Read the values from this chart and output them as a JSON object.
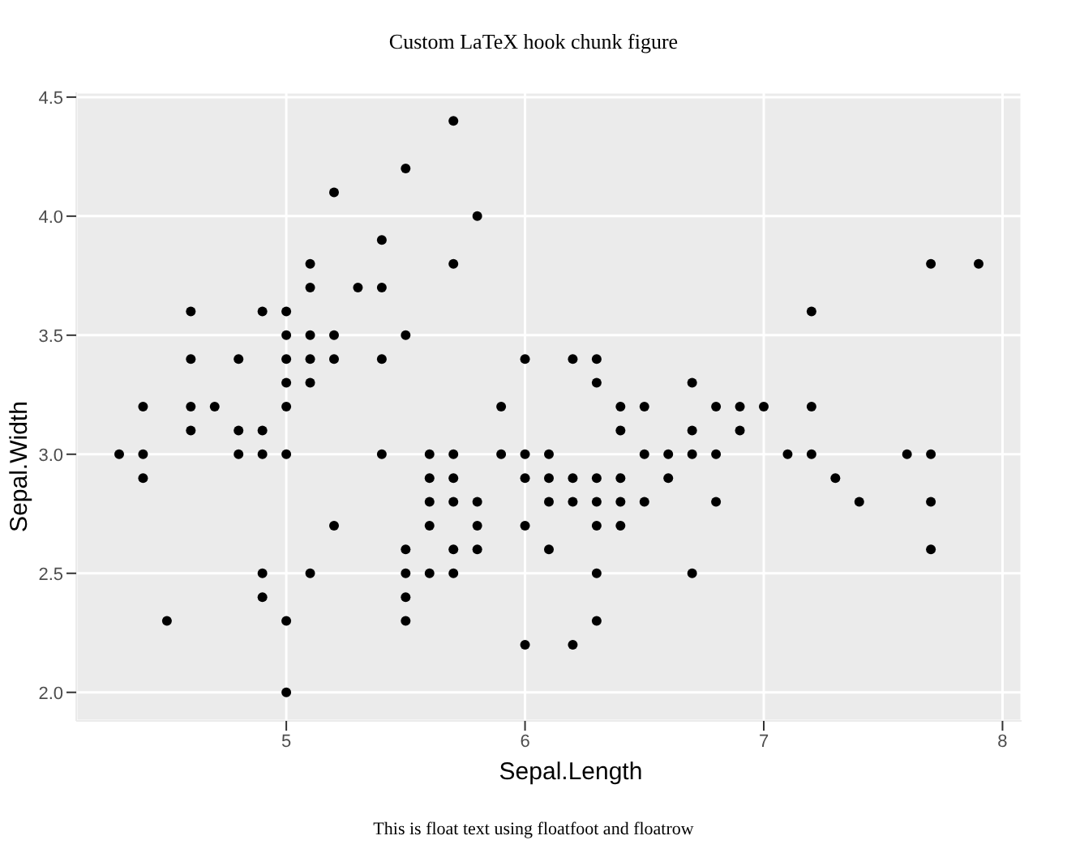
{
  "chart_data": {
    "type": "scatter",
    "title": "Custom LaTeX hook chunk figure",
    "xlabel": "Sepal.Length",
    "ylabel": "Sepal.Width",
    "annotations": [
      "This is float text using floatfoot and floatrow"
    ],
    "series": [
      {
        "color": "#000000",
        "x": [
          4.3,
          4.4,
          4.4,
          4.4,
          4.5,
          4.6,
          4.6,
          4.6,
          4.6,
          4.7,
          4.8,
          4.8,
          4.8,
          4.9,
          4.9,
          4.9,
          4.9,
          4.9,
          5.0,
          5.0,
          5.0,
          5.0,
          5.0,
          5.0,
          5.0,
          5.0,
          5.1,
          5.1,
          5.1,
          5.1,
          5.1,
          5.1,
          5.2,
          5.2,
          5.2,
          5.2,
          5.3,
          5.4,
          5.4,
          5.4,
          5.4,
          5.5,
          5.5,
          5.5,
          5.5,
          5.5,
          5.5,
          5.6,
          5.6,
          5.6,
          5.6,
          5.6,
          5.7,
          5.7,
          5.7,
          5.7,
          5.7,
          5.7,
          5.7,
          5.8,
          5.8,
          5.8,
          5.8,
          5.9,
          5.9,
          6.0,
          6.0,
          6.0,
          6.0,
          6.0,
          6.1,
          6.1,
          6.1,
          6.1,
          6.2,
          6.2,
          6.2,
          6.2,
          6.3,
          6.3,
          6.3,
          6.3,
          6.3,
          6.3,
          6.3,
          6.4,
          6.4,
          6.4,
          6.4,
          6.4,
          6.5,
          6.5,
          6.5,
          6.6,
          6.6,
          6.7,
          6.7,
          6.7,
          6.7,
          6.8,
          6.8,
          6.8,
          6.9,
          6.9,
          7.0,
          7.1,
          7.2,
          7.2,
          7.2,
          7.3,
          7.4,
          7.6,
          7.7,
          7.7,
          7.7,
          7.7,
          7.9
        ],
        "values": [
          3.0,
          2.9,
          3.0,
          3.2,
          2.3,
          3.1,
          3.4,
          3.6,
          3.2,
          3.2,
          3.4,
          3.0,
          3.1,
          3.0,
          3.1,
          3.6,
          2.4,
          2.5,
          3.6,
          3.4,
          3.0,
          3.2,
          3.5,
          3.3,
          2.0,
          2.3,
          3.5,
          3.8,
          3.7,
          3.3,
          3.4,
          2.5,
          3.5,
          3.4,
          4.1,
          2.7,
          3.7,
          3.9,
          3.7,
          3.4,
          3.0,
          4.2,
          3.5,
          2.3,
          2.4,
          2.5,
          2.6,
          2.9,
          3.0,
          2.5,
          2.7,
          2.8,
          4.4,
          3.8,
          2.8,
          2.6,
          3.0,
          2.9,
          2.5,
          4.0,
          2.7,
          2.6,
          2.8,
          3.0,
          3.2,
          2.2,
          2.9,
          2.7,
          3.4,
          3.0,
          2.9,
          2.8,
          3.0,
          2.6,
          2.2,
          2.9,
          2.8,
          3.4,
          3.3,
          2.5,
          2.3,
          2.9,
          2.7,
          2.8,
          3.4,
          3.2,
          2.9,
          2.7,
          2.8,
          3.1,
          2.8,
          3.0,
          3.2,
          2.9,
          3.0,
          3.1,
          3.0,
          2.5,
          3.3,
          2.8,
          3.0,
          3.2,
          3.1,
          3.2,
          3.2,
          3.0,
          3.6,
          3.2,
          3.0,
          2.9,
          2.8,
          3.0,
          3.8,
          2.6,
          2.8,
          3.0,
          3.8
        ]
      }
    ],
    "xlim": [
      4.12,
      8.08
    ],
    "xticks": [
      5,
      6,
      7,
      8
    ],
    "ylim": [
      1.88,
      4.52
    ],
    "yticks": [
      {
        "value": 2,
        "label": "2.0"
      },
      2.5,
      {
        "value": 3,
        "label": "3.0"
      },
      3.5,
      {
        "value": 4,
        "label": "4.0"
      },
      4.5
    ],
    "grid": true,
    "marker": "circle"
  }
}
